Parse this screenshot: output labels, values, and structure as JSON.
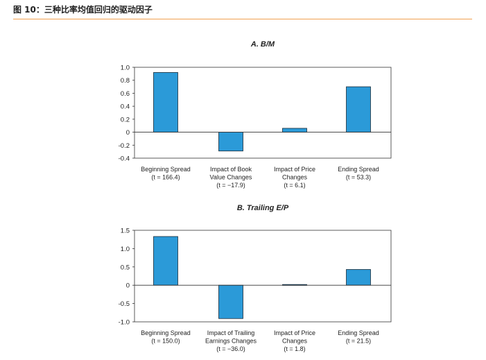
{
  "figure": {
    "caption": "图 10：三种比率均值回归的驱动因子",
    "accent_color": "#f0a050",
    "bar_color": "#2b9ad8"
  },
  "chart_data": [
    {
      "type": "bar",
      "title": "A. B/M",
      "xlabel": "",
      "ylabel": "",
      "ylim": [
        -0.4,
        1.0
      ],
      "yticks": [
        "1.0",
        "0.8",
        "0.6",
        "0.4",
        "0.2",
        "0",
        "-0.2",
        "-0.4"
      ],
      "ytick_values": [
        1.0,
        0.8,
        0.6,
        0.4,
        0.2,
        0,
        -0.2,
        -0.4
      ],
      "categories": [
        [
          "Beginning Spread",
          "(t = 166.4)"
        ],
        [
          "Impact of Book",
          "Value Changes",
          "(t = −17.9)"
        ],
        [
          "Impact of Price",
          "Changes",
          "(t = 6.1)"
        ],
        [
          "Ending Spread",
          "(t = 53.3)"
        ]
      ],
      "values": [
        0.92,
        -0.29,
        0.06,
        0.7
      ],
      "grid": false,
      "legend": "none"
    },
    {
      "type": "bar",
      "title": "B. Trailing E/P",
      "xlabel": "",
      "ylabel": "",
      "ylim": [
        -1.0,
        1.5
      ],
      "yticks": [
        "1.5",
        "1.0",
        "0.5",
        "0",
        "-0.5",
        "-1.0"
      ],
      "ytick_values": [
        1.5,
        1.0,
        0.5,
        0,
        -0.5,
        -1.0
      ],
      "categories": [
        [
          "Beginning Spread",
          "(t = 150.0)"
        ],
        [
          "Impact of Trailing",
          "Earnings Changes",
          "(t = −36.0)"
        ],
        [
          "Impact of Price",
          "Changes",
          "(t = 1.8)"
        ],
        [
          "Ending Spread",
          "(t = 21.5)"
        ]
      ],
      "values": [
        1.33,
        -0.91,
        0.02,
        0.43
      ],
      "grid": false,
      "legend": "none"
    }
  ]
}
